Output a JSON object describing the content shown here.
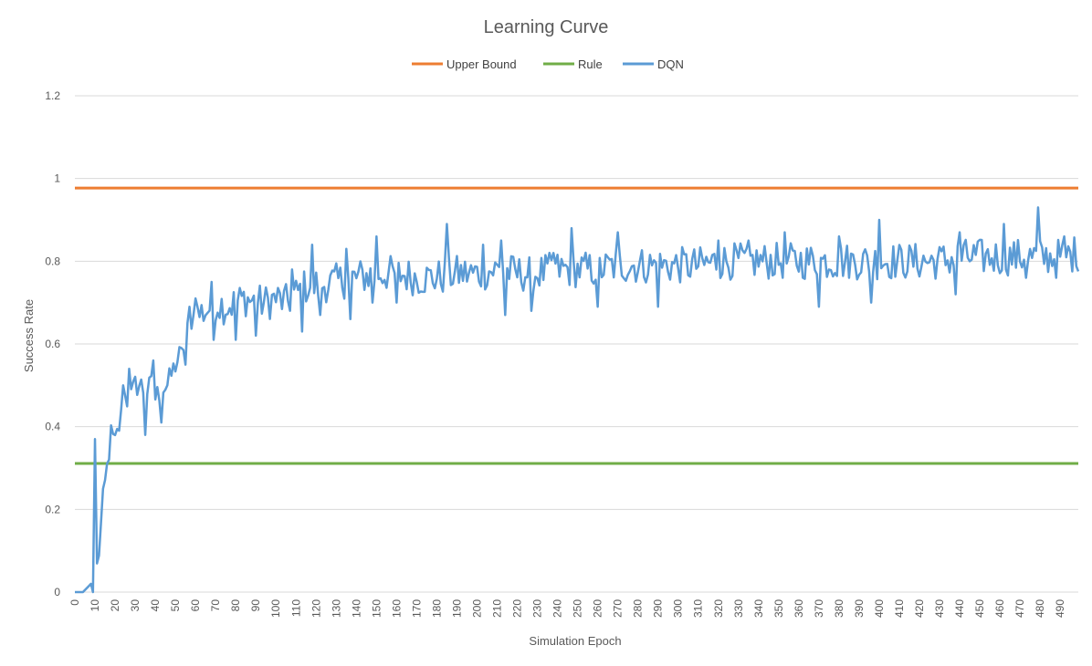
{
  "chart_data": {
    "type": "line",
    "title": "Learning Curve",
    "xlabel": "Simulation Epoch",
    "ylabel": "Success Rate",
    "xlim": [
      0,
      499
    ],
    "ylim": [
      0,
      1.2
    ],
    "yticks": [
      "0",
      "0.2",
      "0.4",
      "0.6",
      "0.8",
      "1",
      "1.2"
    ],
    "xtick_step": 10,
    "grid": true,
    "legend_position": "top",
    "series": [
      {
        "name": "Upper Bound",
        "color": "#ED7D31",
        "constant": 0.977
      },
      {
        "name": "Rule",
        "color": "#70AD47",
        "constant": 0.311
      },
      {
        "name": "DQN",
        "color": "#5B9BD5",
        "anchors": [
          [
            0,
            0
          ],
          [
            4,
            0
          ],
          [
            6,
            0.01
          ],
          [
            8,
            0.02
          ],
          [
            9,
            0.0
          ],
          [
            10,
            0.37
          ],
          [
            11,
            0.06
          ],
          [
            12,
            0.1
          ],
          [
            14,
            0.22
          ],
          [
            16,
            0.3
          ],
          [
            18,
            0.38
          ],
          [
            20,
            0.36
          ],
          [
            22,
            0.4
          ],
          [
            25,
            0.47
          ],
          [
            27,
            0.46
          ],
          [
            30,
            0.5
          ],
          [
            33,
            0.5
          ],
          [
            35,
            0.48
          ],
          [
            38,
            0.5
          ],
          [
            40,
            0.47
          ],
          [
            43,
            0.49
          ],
          [
            46,
            0.5
          ],
          [
            50,
            0.55
          ],
          [
            53,
            0.58
          ],
          [
            56,
            0.63
          ],
          [
            58,
            0.66
          ],
          [
            60,
            0.67
          ],
          [
            65,
            0.68
          ],
          [
            70,
            0.7
          ],
          [
            75,
            0.69
          ],
          [
            80,
            0.7
          ],
          [
            85,
            0.71
          ],
          [
            90,
            0.7
          ],
          [
            95,
            0.7
          ],
          [
            100,
            0.71
          ],
          [
            105,
            0.7
          ],
          [
            110,
            0.72
          ],
          [
            115,
            0.74
          ],
          [
            120,
            0.74
          ],
          [
            130,
            0.75
          ],
          [
            140,
            0.76
          ],
          [
            150,
            0.77
          ],
          [
            160,
            0.77
          ],
          [
            170,
            0.76
          ],
          [
            180,
            0.76
          ],
          [
            190,
            0.77
          ],
          [
            200,
            0.77
          ],
          [
            210,
            0.78
          ],
          [
            220,
            0.77
          ],
          [
            230,
            0.77
          ],
          [
            240,
            0.78
          ],
          [
            250,
            0.78
          ],
          [
            260,
            0.78
          ],
          [
            270,
            0.79
          ],
          [
            280,
            0.79
          ],
          [
            290,
            0.79
          ],
          [
            300,
            0.79
          ],
          [
            310,
            0.79
          ],
          [
            320,
            0.8
          ],
          [
            330,
            0.8
          ],
          [
            340,
            0.8
          ],
          [
            350,
            0.8
          ],
          [
            360,
            0.8
          ],
          [
            370,
            0.8
          ],
          [
            380,
            0.8
          ],
          [
            390,
            0.8
          ],
          [
            400,
            0.8
          ],
          [
            410,
            0.8
          ],
          [
            420,
            0.8
          ],
          [
            430,
            0.8
          ],
          [
            440,
            0.81
          ],
          [
            450,
            0.81
          ],
          [
            460,
            0.81
          ],
          [
            470,
            0.81
          ],
          [
            480,
            0.81
          ],
          [
            490,
            0.81
          ],
          [
            499,
            0.82
          ]
        ],
        "noise_amplitude": 0.09,
        "peaks": [
          [
            10,
            0.37
          ],
          [
            24,
            0.5
          ],
          [
            27,
            0.54
          ],
          [
            35,
            0.55
          ],
          [
            39,
            0.56
          ],
          [
            53,
            0.59
          ],
          [
            57,
            0.69
          ],
          [
            60,
            0.71
          ],
          [
            68,
            0.75
          ],
          [
            80,
            0.75
          ],
          [
            90,
            0.76
          ],
          [
            108,
            0.78
          ],
          [
            118,
            0.84
          ],
          [
            135,
            0.83
          ],
          [
            150,
            0.86
          ],
          [
            160,
            0.85
          ],
          [
            185,
            0.89
          ],
          [
            203,
            0.84
          ],
          [
            212,
            0.85
          ],
          [
            238,
            0.82
          ],
          [
            247,
            0.88
          ],
          [
            270,
            0.87
          ],
          [
            290,
            0.87
          ],
          [
            320,
            0.85
          ],
          [
            335,
            0.85
          ],
          [
            353,
            0.87
          ],
          [
            380,
            0.86
          ],
          [
            400,
            0.9
          ],
          [
            440,
            0.87
          ],
          [
            462,
            0.89
          ],
          [
            479,
            0.93
          ],
          [
            492,
            0.86
          ]
        ],
        "troughs": [
          [
            35,
            0.38
          ],
          [
            43,
            0.41
          ],
          [
            55,
            0.55
          ],
          [
            69,
            0.61
          ],
          [
            80,
            0.61
          ],
          [
            90,
            0.62
          ],
          [
            113,
            0.63
          ],
          [
            122,
            0.67
          ],
          [
            137,
            0.66
          ],
          [
            148,
            0.7
          ],
          [
            160,
            0.7
          ],
          [
            214,
            0.67
          ],
          [
            227,
            0.68
          ],
          [
            260,
            0.69
          ],
          [
            290,
            0.69
          ],
          [
            370,
            0.69
          ],
          [
            396,
            0.7
          ],
          [
            438,
            0.72
          ],
          [
            473,
            0.76
          ],
          [
            488,
            0.76
          ]
        ]
      }
    ]
  }
}
